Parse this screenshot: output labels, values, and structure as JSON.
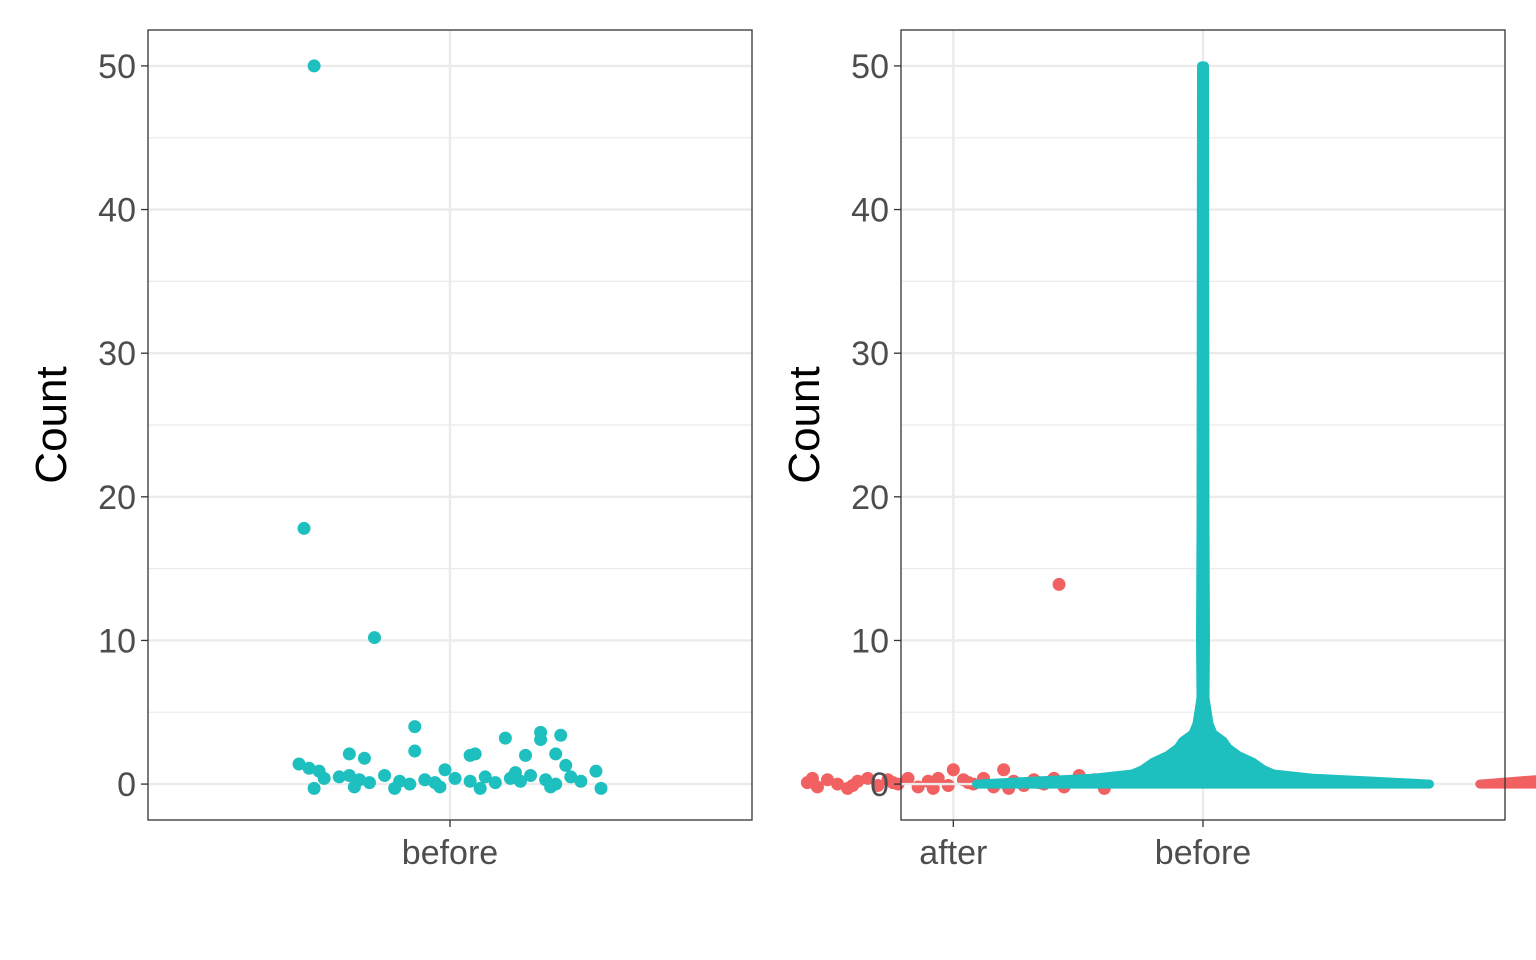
{
  "colors": {
    "before": "#1ebfbf",
    "after": "#f26161"
  },
  "chart_data": [
    {
      "type": "scatter",
      "subtype": "jitter",
      "ylabel": "Count",
      "xlabel": "",
      "categories": [
        "before",
        "after"
      ],
      "ylim": [
        -2.5,
        52.5
      ],
      "yticks": [
        0,
        10,
        20,
        30,
        40,
        50
      ],
      "grid": true,
      "legend": "none",
      "points": {
        "before": [
          {
            "x": -0.27,
            "y": 50.0
          },
          {
            "x": -0.29,
            "y": 17.8
          },
          {
            "x": -0.15,
            "y": 10.2
          },
          {
            "x": -0.07,
            "y": 4.0
          },
          {
            "x": 0.11,
            "y": 3.2
          },
          {
            "x": 0.18,
            "y": 3.6
          },
          {
            "x": 0.22,
            "y": 3.4
          },
          {
            "x": 0.18,
            "y": 3.1
          },
          {
            "x": -0.07,
            "y": 2.3
          },
          {
            "x": -0.2,
            "y": 2.1
          },
          {
            "x": -0.17,
            "y": 1.8
          },
          {
            "x": 0.04,
            "y": 2.0
          },
          {
            "x": 0.05,
            "y": 2.1
          },
          {
            "x": 0.15,
            "y": 2.0
          },
          {
            "x": 0.21,
            "y": 2.1
          },
          {
            "x": -0.3,
            "y": 1.4
          },
          {
            "x": -0.28,
            "y": 1.1
          },
          {
            "x": -0.26,
            "y": 0.9
          },
          {
            "x": 0.23,
            "y": 1.3
          },
          {
            "x": 0.29,
            "y": 0.9
          },
          {
            "x": -0.01,
            "y": 1.0
          },
          {
            "x": 0.13,
            "y": 0.8
          },
          {
            "x": -0.25,
            "y": 0.4
          },
          {
            "x": -0.22,
            "y": 0.5
          },
          {
            "x": -0.2,
            "y": 0.6
          },
          {
            "x": -0.18,
            "y": 0.3
          },
          {
            "x": -0.16,
            "y": 0.1
          },
          {
            "x": -0.13,
            "y": 0.6
          },
          {
            "x": -0.1,
            "y": 0.2
          },
          {
            "x": -0.08,
            "y": 0.0
          },
          {
            "x": -0.05,
            "y": 0.3
          },
          {
            "x": -0.03,
            "y": 0.1
          },
          {
            "x": 0.01,
            "y": 0.4
          },
          {
            "x": 0.04,
            "y": 0.2
          },
          {
            "x": 0.07,
            "y": 0.5
          },
          {
            "x": 0.09,
            "y": 0.1
          },
          {
            "x": 0.12,
            "y": 0.4
          },
          {
            "x": 0.14,
            "y": 0.2
          },
          {
            "x": 0.16,
            "y": 0.6
          },
          {
            "x": 0.19,
            "y": 0.3
          },
          {
            "x": 0.21,
            "y": 0.0
          },
          {
            "x": 0.24,
            "y": 0.5
          },
          {
            "x": 0.26,
            "y": 0.2
          },
          {
            "x": -0.27,
            "y": -0.3
          },
          {
            "x": -0.19,
            "y": -0.2
          },
          {
            "x": -0.11,
            "y": -0.3
          },
          {
            "x": -0.02,
            "y": -0.2
          },
          {
            "x": 0.06,
            "y": -0.3
          },
          {
            "x": 0.2,
            "y": -0.2
          },
          {
            "x": 0.3,
            "y": -0.3
          }
        ],
        "after": [
          {
            "x": 0.21,
            "y": 13.9
          },
          {
            "x": 0.0,
            "y": 1.0
          },
          {
            "x": 0.1,
            "y": 1.0
          },
          {
            "x": 0.25,
            "y": 0.6
          },
          {
            "x": 0.28,
            "y": 0.3
          },
          {
            "x": 0.3,
            "y": -0.3
          },
          {
            "x": -0.29,
            "y": 0.1
          },
          {
            "x": -0.27,
            "y": -0.2
          },
          {
            "x": -0.25,
            "y": 0.3
          },
          {
            "x": -0.23,
            "y": 0.0
          },
          {
            "x": -0.21,
            "y": -0.3
          },
          {
            "x": -0.19,
            "y": 0.2
          },
          {
            "x": -0.17,
            "y": 0.4
          },
          {
            "x": -0.15,
            "y": -0.1
          },
          {
            "x": -0.13,
            "y": 0.3
          },
          {
            "x": -0.11,
            "y": 0.0
          },
          {
            "x": -0.09,
            "y": 0.4
          },
          {
            "x": -0.07,
            "y": -0.2
          },
          {
            "x": -0.05,
            "y": 0.2
          },
          {
            "x": -0.03,
            "y": 0.4
          },
          {
            "x": -0.01,
            "y": -0.1
          },
          {
            "x": 0.02,
            "y": 0.3
          },
          {
            "x": 0.04,
            "y": 0.0
          },
          {
            "x": 0.06,
            "y": 0.4
          },
          {
            "x": 0.08,
            "y": -0.2
          },
          {
            "x": 0.12,
            "y": 0.2
          },
          {
            "x": 0.14,
            "y": -0.1
          },
          {
            "x": 0.16,
            "y": 0.3
          },
          {
            "x": 0.18,
            "y": 0.0
          },
          {
            "x": 0.2,
            "y": 0.4
          },
          {
            "x": 0.22,
            "y": -0.2
          },
          {
            "x": -0.28,
            "y": 0.4
          },
          {
            "x": -0.2,
            "y": -0.1
          },
          {
            "x": -0.12,
            "y": 0.1
          },
          {
            "x": -0.04,
            "y": -0.3
          },
          {
            "x": 0.03,
            "y": 0.1
          },
          {
            "x": 0.11,
            "y": -0.3
          },
          {
            "x": 0.17,
            "y": 0.1
          }
        ]
      }
    },
    {
      "type": "violin",
      "ylabel": "Count",
      "xlabel": "",
      "categories": [
        "before",
        "after"
      ],
      "ylim": [
        -2.5,
        52.5
      ],
      "yticks": [
        0,
        10,
        20,
        30,
        40,
        50
      ],
      "grid": true,
      "legend": "none",
      "violins": {
        "before": {
          "y_range": [
            0,
            50
          ],
          "profile": [
            {
              "y": 0.0,
              "w": 0.45
            },
            {
              "y": 0.2,
              "w": 0.34
            },
            {
              "y": 0.4,
              "w": 0.22
            },
            {
              "y": 0.7,
              "w": 0.14
            },
            {
              "y": 1.0,
              "w": 0.12
            },
            {
              "y": 1.5,
              "w": 0.1
            },
            {
              "y": 2.0,
              "w": 0.07
            },
            {
              "y": 2.5,
              "w": 0.05
            },
            {
              "y": 3.0,
              "w": 0.04
            },
            {
              "y": 3.5,
              "w": 0.02
            },
            {
              "y": 4.2,
              "w": 0.012
            },
            {
              "y": 6.0,
              "w": 0.004
            },
            {
              "y": 10.0,
              "w": 0.005
            },
            {
              "y": 18.0,
              "w": 0.004
            },
            {
              "y": 50.0,
              "w": 0.003
            }
          ]
        },
        "after": {
          "y_range": [
            0,
            14
          ],
          "profile": [
            {
              "y": 0.0,
              "w": 0.45
            },
            {
              "y": 0.25,
              "w": 0.36
            },
            {
              "y": 0.5,
              "w": 0.25
            },
            {
              "y": 0.8,
              "w": 0.15
            },
            {
              "y": 1.1,
              "w": 0.07
            },
            {
              "y": 1.5,
              "w": 0.02
            },
            {
              "y": 2.5,
              "w": 0.004
            },
            {
              "y": 14.0,
              "w": 0.002
            }
          ]
        }
      }
    }
  ]
}
